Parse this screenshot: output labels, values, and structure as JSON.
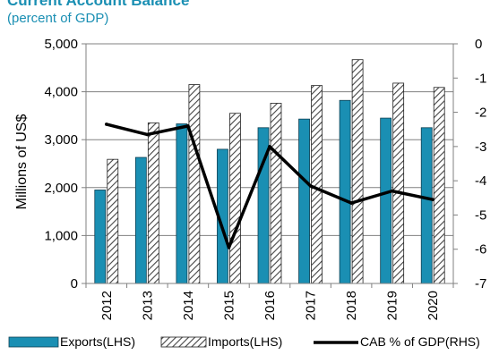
{
  "chart_data": {
    "type": "bar",
    "title": "Current Account Balance",
    "subtitle": "(percent of GDP)",
    "ylabel": "Millions of US$",
    "categories": [
      "2012",
      "2013",
      "2014",
      "2015",
      "2016",
      "2017",
      "2018",
      "2019",
      "2020"
    ],
    "ylim": [
      0,
      5000
    ],
    "y2lim": [
      -7,
      0
    ],
    "yticks": [
      "0",
      "1,000",
      "2,000",
      "3,000",
      "4,000",
      "5,000"
    ],
    "y2ticks": [
      "0",
      "-1",
      "-2",
      "-3",
      "-4",
      "-5",
      "-6",
      "-7"
    ],
    "series": [
      {
        "name": "Exports(LHS)",
        "type": "bar",
        "axis": "left",
        "color": "#1a8fb3",
        "values": [
          1950,
          2630,
          3330,
          2800,
          3250,
          3430,
          3820,
          3450,
          3250
        ]
      },
      {
        "name": "Imports(LHS)",
        "type": "bar",
        "axis": "left",
        "pattern": "hatched",
        "values": [
          2590,
          3350,
          4150,
          3550,
          3760,
          4130,
          4670,
          4180,
          4090
        ]
      },
      {
        "name": "CAB % of GDP(RHS)",
        "type": "line",
        "axis": "right",
        "color": "#000000",
        "values": [
          -2.35,
          -2.65,
          -2.4,
          -5.95,
          -3.0,
          -4.15,
          -4.65,
          -4.3,
          -4.55
        ]
      }
    ],
    "grid": true,
    "legend": "bottom"
  }
}
